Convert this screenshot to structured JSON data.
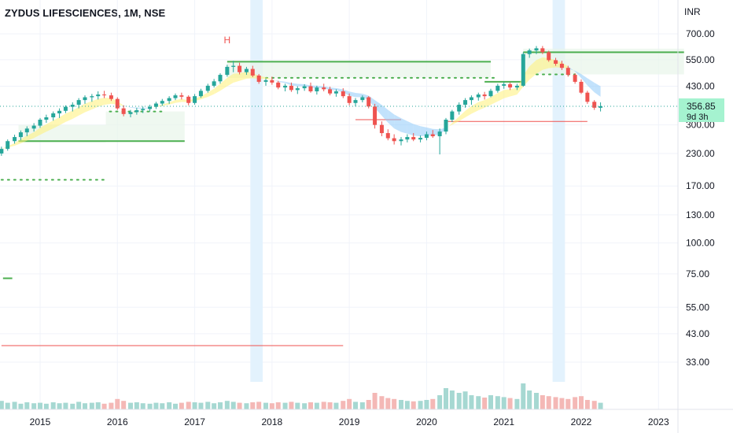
{
  "header": {
    "title": "ZYDUS LIFESCIENCES, 1M, NSE"
  },
  "colors": {
    "up": "#26a69a",
    "down": "#ef5350",
    "green_line": "#4caf50",
    "red_line": "#ef5350",
    "ribbon_yellow": "#fff176",
    "ribbon_blue": "#90caf9",
    "highlight": "#e3f2fd",
    "price_badge": "#a5f3d0"
  },
  "chart_data": {
    "type": "candlestick",
    "currency_label": "INR",
    "scale": "log",
    "y_ticks": [
      "700.00",
      "550.00",
      "430.00",
      "300.00",
      "230.00",
      "170.00",
      "130.00",
      "100.00",
      "75.00",
      "55.00",
      "43.00",
      "33.00"
    ],
    "x_ticks": [
      "2015",
      "2016",
      "2017",
      "2018",
      "2019",
      "2020",
      "2021",
      "2022",
      "2023"
    ],
    "last_price": "356.85",
    "countdown": "9d 3h",
    "annotation_marker": "H",
    "series": [
      {
        "name": "price",
        "points": [
          [
            2014.5,
            230,
            245,
            225,
            240
          ],
          [
            2014.58,
            240,
            262,
            236,
            258
          ],
          [
            2014.67,
            258,
            274,
            252,
            268
          ],
          [
            2014.75,
            268,
            285,
            260,
            280
          ],
          [
            2014.83,
            280,
            296,
            270,
            290
          ],
          [
            2014.92,
            290,
            305,
            282,
            298
          ],
          [
            2015.0,
            298,
            320,
            292,
            315
          ],
          [
            2015.08,
            315,
            330,
            306,
            322
          ],
          [
            2015.17,
            322,
            340,
            312,
            334
          ],
          [
            2015.25,
            334,
            350,
            320,
            342
          ],
          [
            2015.33,
            342,
            360,
            335,
            355
          ],
          [
            2015.42,
            355,
            370,
            340,
            362
          ],
          [
            2015.5,
            362,
            385,
            350,
            378
          ],
          [
            2015.58,
            378,
            395,
            365,
            388
          ],
          [
            2015.67,
            388,
            400,
            372,
            392
          ],
          [
            2015.75,
            392,
            410,
            380,
            398
          ],
          [
            2015.83,
            398,
            412,
            385,
            395
          ],
          [
            2015.92,
            395,
            405,
            375,
            382
          ],
          [
            2016.0,
            382,
            388,
            345,
            350
          ],
          [
            2016.08,
            350,
            360,
            325,
            332
          ],
          [
            2016.17,
            332,
            345,
            322,
            338
          ],
          [
            2016.25,
            338,
            352,
            330,
            344
          ],
          [
            2016.33,
            344,
            356,
            335,
            348
          ],
          [
            2016.42,
            348,
            362,
            340,
            355
          ],
          [
            2016.5,
            355,
            372,
            348,
            366
          ],
          [
            2016.58,
            366,
            382,
            358,
            375
          ],
          [
            2016.67,
            375,
            392,
            365,
            385
          ],
          [
            2016.75,
            385,
            402,
            378,
            395
          ],
          [
            2016.83,
            395,
            405,
            380,
            390
          ],
          [
            2016.92,
            390,
            395,
            360,
            368
          ],
          [
            2017.0,
            368,
            400,
            362,
            392
          ],
          [
            2017.08,
            392,
            420,
            386,
            412
          ],
          [
            2017.17,
            412,
            440,
            405,
            432
          ],
          [
            2017.25,
            432,
            460,
            425,
            450
          ],
          [
            2017.33,
            450,
            485,
            440,
            478
          ],
          [
            2017.42,
            478,
            525,
            470,
            515
          ],
          [
            2017.5,
            515,
            545,
            490,
            520
          ],
          [
            2017.58,
            520,
            535,
            480,
            490
          ],
          [
            2017.67,
            490,
            515,
            478,
            505
          ],
          [
            2017.75,
            505,
            520,
            468,
            475
          ],
          [
            2017.83,
            475,
            482,
            440,
            448
          ],
          [
            2017.92,
            448,
            462,
            432,
            455
          ],
          [
            2018.0,
            455,
            470,
            436,
            445
          ],
          [
            2018.08,
            445,
            452,
            418,
            425
          ],
          [
            2018.17,
            425,
            440,
            410,
            432
          ],
          [
            2018.25,
            432,
            445,
            408,
            415
          ],
          [
            2018.33,
            415,
            430,
            400,
            422
          ],
          [
            2018.42,
            422,
            438,
            412,
            430
          ],
          [
            2018.5,
            430,
            445,
            405,
            410
          ],
          [
            2018.58,
            410,
            432,
            398,
            425
          ],
          [
            2018.67,
            425,
            440,
            410,
            418
          ],
          [
            2018.75,
            418,
            428,
            395,
            402
          ],
          [
            2018.83,
            402,
            418,
            390,
            410
          ],
          [
            2018.92,
            410,
            422,
            385,
            392
          ],
          [
            2019.0,
            392,
            402,
            360,
            368
          ],
          [
            2019.08,
            368,
            385,
            356,
            378
          ],
          [
            2019.17,
            378,
            395,
            370,
            388
          ],
          [
            2019.25,
            388,
            392,
            350,
            356
          ],
          [
            2019.33,
            356,
            365,
            290,
            300
          ],
          [
            2019.42,
            300,
            310,
            270,
            278
          ],
          [
            2019.5,
            278,
            288,
            260,
            265
          ],
          [
            2019.58,
            265,
            275,
            250,
            258
          ],
          [
            2019.67,
            258,
            268,
            248,
            262
          ],
          [
            2019.75,
            262,
            275,
            255,
            268
          ],
          [
            2019.83,
            268,
            278,
            258,
            262
          ],
          [
            2019.92,
            262,
            272,
            255,
            266
          ],
          [
            2020.0,
            266,
            282,
            260,
            275
          ],
          [
            2020.08,
            275,
            286,
            266,
            270
          ],
          [
            2020.17,
            270,
            290,
            228,
            282
          ],
          [
            2020.25,
            282,
            320,
            275,
            315
          ],
          [
            2020.33,
            315,
            345,
            308,
            340
          ],
          [
            2020.42,
            340,
            370,
            330,
            362
          ],
          [
            2020.5,
            362,
            385,
            352,
            378
          ],
          [
            2020.58,
            378,
            395,
            362,
            388
          ],
          [
            2020.67,
            388,
            405,
            376,
            398
          ],
          [
            2020.75,
            398,
            408,
            380,
            392
          ],
          [
            2020.83,
            392,
            420,
            388,
            412
          ],
          [
            2020.92,
            412,
            440,
            405,
            432
          ],
          [
            2021.0,
            432,
            448,
            420,
            438
          ],
          [
            2021.08,
            438,
            445,
            415,
            425
          ],
          [
            2021.17,
            425,
            440,
            415,
            432
          ],
          [
            2021.25,
            432,
            590,
            428,
            580
          ],
          [
            2021.33,
            580,
            610,
            560,
            600
          ],
          [
            2021.42,
            600,
            625,
            580,
            612
          ],
          [
            2021.5,
            612,
            625,
            580,
            590
          ],
          [
            2021.58,
            590,
            598,
            540,
            548
          ],
          [
            2021.67,
            548,
            560,
            520,
            530
          ],
          [
            2021.75,
            530,
            545,
            500,
            510
          ],
          [
            2021.83,
            510,
            520,
            470,
            478
          ],
          [
            2021.92,
            478,
            485,
            440,
            448
          ],
          [
            2022.0,
            448,
            458,
            400,
            405
          ],
          [
            2022.08,
            405,
            412,
            365,
            372
          ],
          [
            2022.17,
            372,
            378,
            345,
            352
          ],
          [
            2022.25,
            352,
            370,
            340,
            356.85
          ]
        ]
      }
    ],
    "volume": [
      [
        2014.5,
        18
      ],
      [
        2014.58,
        14
      ],
      [
        2014.67,
        16
      ],
      [
        2014.75,
        12
      ],
      [
        2014.83,
        15
      ],
      [
        2014.92,
        13
      ],
      [
        2015.0,
        14
      ],
      [
        2015.08,
        12
      ],
      [
        2015.17,
        15
      ],
      [
        2015.25,
        13
      ],
      [
        2015.33,
        14
      ],
      [
        2015.42,
        12
      ],
      [
        2015.5,
        16
      ],
      [
        2015.58,
        13
      ],
      [
        2015.67,
        14
      ],
      [
        2015.75,
        15
      ],
      [
        2015.83,
        12
      ],
      [
        2015.92,
        14
      ],
      [
        2016.0,
        22
      ],
      [
        2016.08,
        18
      ],
      [
        2016.17,
        14
      ],
      [
        2016.25,
        15
      ],
      [
        2016.33,
        13
      ],
      [
        2016.42,
        12
      ],
      [
        2016.5,
        14
      ],
      [
        2016.58,
        13
      ],
      [
        2016.67,
        15
      ],
      [
        2016.75,
        12
      ],
      [
        2016.83,
        14
      ],
      [
        2016.92,
        16
      ],
      [
        2017.0,
        15
      ],
      [
        2017.08,
        14
      ],
      [
        2017.17,
        16
      ],
      [
        2017.25,
        13
      ],
      [
        2017.33,
        15
      ],
      [
        2017.42,
        18
      ],
      [
        2017.5,
        16
      ],
      [
        2017.58,
        14
      ],
      [
        2017.67,
        13
      ],
      [
        2017.75,
        15
      ],
      [
        2017.83,
        16
      ],
      [
        2017.92,
        14
      ],
      [
        2018.0,
        13
      ],
      [
        2018.08,
        15
      ],
      [
        2018.17,
        14
      ],
      [
        2018.25,
        16
      ],
      [
        2018.33,
        14
      ],
      [
        2018.42,
        13
      ],
      [
        2018.5,
        15
      ],
      [
        2018.58,
        14
      ],
      [
        2018.67,
        16
      ],
      [
        2018.75,
        15
      ],
      [
        2018.83,
        14
      ],
      [
        2018.92,
        18
      ],
      [
        2019.0,
        22
      ],
      [
        2019.08,
        16
      ],
      [
        2019.17,
        15
      ],
      [
        2019.25,
        20
      ],
      [
        2019.33,
        35
      ],
      [
        2019.42,
        28
      ],
      [
        2019.5,
        24
      ],
      [
        2019.58,
        22
      ],
      [
        2019.67,
        20
      ],
      [
        2019.75,
        18
      ],
      [
        2019.83,
        17
      ],
      [
        2019.92,
        18
      ],
      [
        2020.0,
        20
      ],
      [
        2020.08,
        22
      ],
      [
        2020.17,
        30
      ],
      [
        2020.25,
        45
      ],
      [
        2020.33,
        40
      ],
      [
        2020.42,
        35
      ],
      [
        2020.5,
        38
      ],
      [
        2020.58,
        30
      ],
      [
        2020.67,
        28
      ],
      [
        2020.75,
        25
      ],
      [
        2020.83,
        30
      ],
      [
        2020.92,
        28
      ],
      [
        2021.0,
        26
      ],
      [
        2021.08,
        24
      ],
      [
        2021.17,
        22
      ],
      [
        2021.25,
        55
      ],
      [
        2021.33,
        40
      ],
      [
        2021.42,
        35
      ],
      [
        2021.5,
        30
      ],
      [
        2021.58,
        28
      ],
      [
        2021.67,
        26
      ],
      [
        2021.75,
        24
      ],
      [
        2021.83,
        22
      ],
      [
        2021.92,
        26
      ],
      [
        2022.0,
        28
      ],
      [
        2022.08,
        20
      ],
      [
        2022.17,
        18
      ],
      [
        2022.25,
        14
      ]
    ]
  }
}
